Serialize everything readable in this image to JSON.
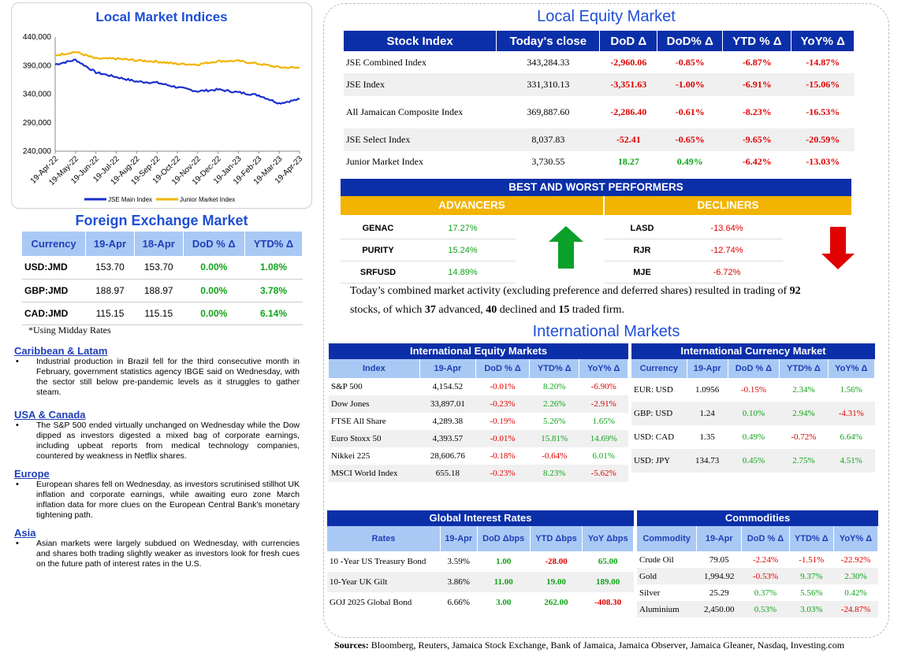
{
  "chart_panel": {
    "title": "Local Market Indices",
    "chart_data": {
      "type": "line",
      "x": [
        "19-Apr-22",
        "19-May-22",
        "19-Jun-22",
        "19-Jul-22",
        "19-Aug-22",
        "19-Sep-22",
        "19-Oct-22",
        "19-Nov-22",
        "19-Dec-22",
        "19-Jan-23",
        "19-Feb-23",
        "19-Mar-23",
        "19-Apr-23"
      ],
      "series": [
        {
          "name": "JSE Main Index",
          "color": "#1a2fd0",
          "values": [
            392000,
            400000,
            378000,
            370000,
            362000,
            360000,
            352000,
            345000,
            348000,
            343000,
            338000,
            324000,
            331000
          ]
        },
        {
          "name": "Junior Market Index",
          "color": "#f2b400",
          "values": [
            408000,
            414000,
            402000,
            402000,
            399000,
            397000,
            393000,
            392000,
            398000,
            398000,
            393000,
            387000,
            386000
          ]
        }
      ],
      "yticks": [
        "440,000",
        "390,000",
        "340,000",
        "290,000",
        "240,000"
      ],
      "ylim": [
        240000,
        440000
      ],
      "legend": "bottom"
    }
  },
  "fx": {
    "title": "Foreign Exchange Market",
    "headers": [
      "Currency",
      "19-Apr",
      "18-Apr",
      "DoD % Δ",
      "YTD% Δ"
    ],
    "rows": [
      [
        "USD:JMD",
        "153.70",
        "153.70",
        "0.00%",
        "1.08%"
      ],
      [
        "GBP:JMD",
        "188.97",
        "188.97",
        "0.00%",
        "3.78%"
      ],
      [
        "CAD:JMD",
        "115.15",
        "115.15",
        "0.00%",
        "6.14%"
      ]
    ],
    "note": "*Using Midday Rates"
  },
  "news": [
    {
      "heading": "Caribbean & Latam",
      "text": "Industrial production in Brazil fell for the third consecutive month in February, government statistics agency IBGE said on Wednesday, with the sector still below pre-pandemic levels as it struggles to gather steam."
    },
    {
      "heading": "USA & Canada",
      "text": "The S&P 500 ended virtually unchanged on Wednesday while the Dow dipped as investors digested a mixed bag of corporate earnings, including upbeat reports from medical technology companies, countered by weakness in Netflix shares."
    },
    {
      "heading": "Europe",
      "text": "European shares fell on Wednesday, as investors scrutinised stillhot UK inflation and corporate earnings, while awaiting euro zone March inflation data for more clues on the European Central Bank's monetary tightening path."
    },
    {
      "heading": "Asia",
      "text": "Asian markets were largely subdued on Wednesday, with currencies and shares both trading slightly weaker as investors look for fresh cues on the future path of interest rates in the U.S."
    }
  ],
  "equity": {
    "title": "Local Equity Market",
    "headers": [
      "Stock Index",
      "Today's close",
      "DoD  Δ",
      "DoD% Δ",
      "YTD % Δ",
      "YoY% Δ"
    ],
    "rows": [
      [
        "JSE Combined Index",
        "343,284.33",
        "-2,960.06",
        "-0.85%",
        "-6.87%",
        "-14.87%"
      ],
      [
        "JSE Index",
        "331,310.13",
        "-3,351.63",
        "-1.00%",
        "-6.91%",
        "-15.06%"
      ],
      [
        "All Jamaican Composite Index",
        "369,887.60",
        "-2,286.40",
        "-0.61%",
        "-8.23%",
        "-16.53%"
      ],
      [
        "JSE Select Index",
        "8,037.83",
        "-52.41",
        "-0.65%",
        "-9.65%",
        "-20.59%"
      ],
      [
        "Junior Market Index",
        "3,730.55",
        "18.27",
        "0.49%",
        "-6.42%",
        "-13.03%"
      ]
    ]
  },
  "performers": {
    "title": "BEST AND WORST PERFORMERS",
    "advancers_label": "ADVANCERS",
    "decliners_label": "DECLINERS",
    "advancers": [
      [
        "GENAC",
        "17.27%"
      ],
      [
        "PURITY",
        "15.24%"
      ],
      [
        "SRFUSD",
        "14.89%"
      ]
    ],
    "decliners": [
      [
        "LASD",
        "-13.64%"
      ],
      [
        "RJR",
        "-12.74%"
      ],
      [
        "MJE",
        "-6.72%"
      ]
    ]
  },
  "activity": {
    "t1": "Today’s combined market activity (excluding preference and deferred shares) resulted in trading of ",
    "n1": "92",
    "t2": "stocks, of which ",
    "n2": "37",
    "t3": " advanced, ",
    "n3": "40",
    "t4": " declined and ",
    "n4": "15",
    "t5": " traded firm."
  },
  "intl": {
    "title": "International Markets",
    "equity": {
      "title": "International Equity Markets",
      "headers": [
        "Index",
        "19-Apr",
        "DoD % Δ",
        "YTD% Δ",
        "YoY% Δ"
      ],
      "rows": [
        [
          "S&P 500",
          "4,154.52",
          "-0.01%",
          "8.20%",
          "-6.90%"
        ],
        [
          "Dow Jones",
          "33,897.01",
          "-0.23%",
          "2.26%",
          "-2.91%"
        ],
        [
          "FTSE All Share",
          "4,289.38",
          "-0.19%",
          "5.26%",
          "1.65%"
        ],
        [
          "Euro Stoxx 50",
          "4,393.57",
          "-0.01%",
          "15.81%",
          "14.69%"
        ],
        [
          "Nikkei 225",
          "28,606.76",
          "-0.18%",
          "-0.64%",
          "6.01%"
        ],
        [
          "MSCI World Index",
          "655.18",
          "-0.23%",
          "8.23%",
          "-5.62%"
        ]
      ]
    },
    "currency": {
      "title": "International Currency Market",
      "headers": [
        "Currency",
        "19-Apr",
        "DoD % Δ",
        "YTD% Δ",
        "YoY% Δ"
      ],
      "rows": [
        [
          "EUR: USD",
          "1.0956",
          "-0.15%",
          "2.34%",
          "1.56%"
        ],
        [
          "GBP: USD",
          "1.24",
          "0.10%",
          "2.94%",
          "-4.31%"
        ],
        [
          "USD: CAD",
          "1.35",
          "0.49%",
          "-0.72%",
          "6.64%"
        ],
        [
          "USD: JPY",
          "134.73",
          "0.45%",
          "2.75%",
          "4.51%"
        ]
      ]
    },
    "rates": {
      "title": "Global Interest Rates",
      "headers": [
        "Rates",
        "19-Apr",
        "DoD Δbps",
        "YTD Δbps",
        "YoY Δbps"
      ],
      "rows": [
        [
          "10 -Year US Treasury Bond",
          "3.59%",
          "1.00",
          "-28.00",
          "65.00"
        ],
        [
          "10-Year UK Gilt",
          "3.86%",
          "11.00",
          "19.00",
          "189.00"
        ],
        [
          "GOJ 2025 Global Bond",
          "6.66%",
          "3.00",
          "262.00",
          "-408.30"
        ]
      ]
    },
    "commodities": {
      "title": "Commodities",
      "headers": [
        "Commodity",
        "19-Apr",
        "DoD % Δ",
        "YTD% Δ",
        "YoY% Δ"
      ],
      "rows": [
        [
          "Crude Oil",
          "79.05",
          "-2.24%",
          "-1.51%",
          "-22.92%"
        ],
        [
          "Gold",
          "1,994.92",
          "-0.53%",
          "9.37%",
          "2.30%"
        ],
        [
          "Silver",
          "25.29",
          "0.37%",
          "5.56%",
          "0.42%"
        ],
        [
          "Aluminium",
          "2,450.00",
          "0.53%",
          "3.03%",
          "-24.87%"
        ]
      ]
    }
  },
  "sources": {
    "label": "Sources:",
    "text": " Bloomberg, Reuters, Jamaica Stock Exchange, Bank of Jamaica, Jamaica Observer, Jamaica Gleaner, Nasdaq, Investing.com"
  }
}
